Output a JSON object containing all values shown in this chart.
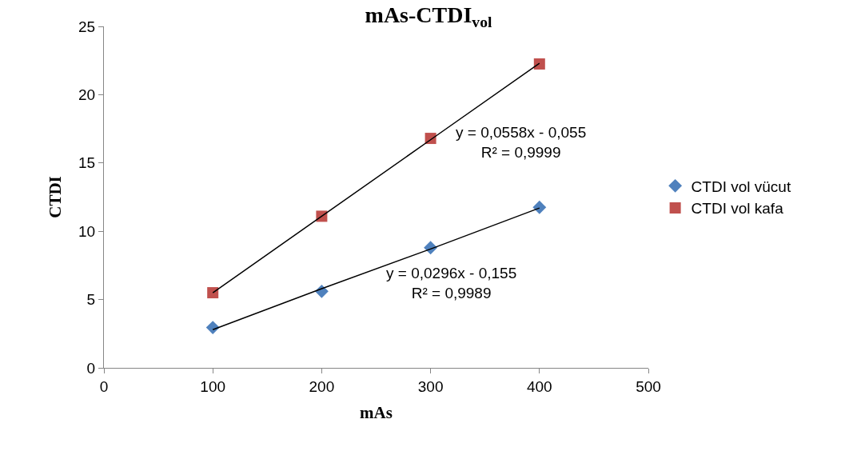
{
  "chart_data": {
    "type": "scatter",
    "title": "mAs-CTDI$_{vol}$",
    "xlabel": "mAs",
    "ylabel": "CTDI",
    "x": [
      100,
      200,
      300,
      400
    ],
    "series": [
      {
        "name": "CTDI vol vücut",
        "color": "#4f81bd",
        "marker": "diamond",
        "values": [
          2.95,
          5.6,
          8.8,
          11.75
        ]
      },
      {
        "name": "CTDI vol kafa",
        "color": "#c0504d",
        "marker": "square",
        "values": [
          5.5,
          11.1,
          16.8,
          22.25
        ]
      },
      {
        "type": "line",
        "color": "#000000",
        "marker": "none",
        "values": [
          2.8,
          5.8,
          8.7,
          11.7
        ]
      },
      {
        "type": "line",
        "color": "#000000",
        "marker": "none",
        "values": [
          5.5,
          11.1,
          16.7,
          22.3
        ]
      }
    ],
    "annotations": [
      "y = 0,0558x - 0,055\nR² = 0,9999",
      "y = 0,0296x - 0,155\nR² = 0,9989"
    ],
    "xlim": [
      0,
      500
    ],
    "xticks": [
      0,
      100,
      200,
      300,
      400,
      500
    ],
    "ylim": [
      0,
      25
    ],
    "yticks": [
      0,
      5,
      10,
      15,
      20,
      25
    ],
    "legend": "right"
  }
}
